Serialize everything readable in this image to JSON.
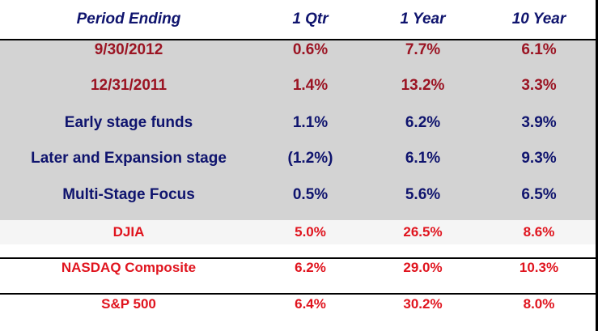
{
  "header": {
    "period": "Period Ending",
    "q1": "1 Qtr",
    "y1": "1 Year",
    "y10": "10 Year"
  },
  "rows": [
    {
      "label": "9/30/2012",
      "q1": "0.6%",
      "y1": "7.7%",
      "y10": "6.1%"
    },
    {
      "label": "12/31/2011",
      "q1": "1.4%",
      "y1": "13.2%",
      "y10": "3.3%"
    },
    {
      "label": "Early stage funds",
      "q1": "1.1%",
      "y1": "6.2%",
      "y10": "3.9%"
    },
    {
      "label": "Later and Expansion stage",
      "q1": "(1.2%)",
      "y1": "6.1%",
      "y10": "9.3%"
    },
    {
      "label": "Multi-Stage Focus",
      "q1": "0.5%",
      "y1": "5.6%",
      "y10": "6.5%"
    }
  ],
  "indices": [
    {
      "label": "DJIA",
      "q1": "5.0%",
      "y1": "26.5%",
      "y10": "8.6%"
    },
    {
      "label": "NASDAQ Composite",
      "q1": "6.2%",
      "y1": "29.0%",
      "y10": "10.3%"
    },
    {
      "label": "S&P 500",
      "q1": "6.4%",
      "y1": "30.2%",
      "y10": "8.0%"
    }
  ],
  "colors": {
    "header_text": "#0f146e",
    "period_rows": "#9b1423",
    "fund_rows": "#0f146e",
    "index_rows": "#e0141e",
    "gray_band": "#d3d3d3"
  }
}
